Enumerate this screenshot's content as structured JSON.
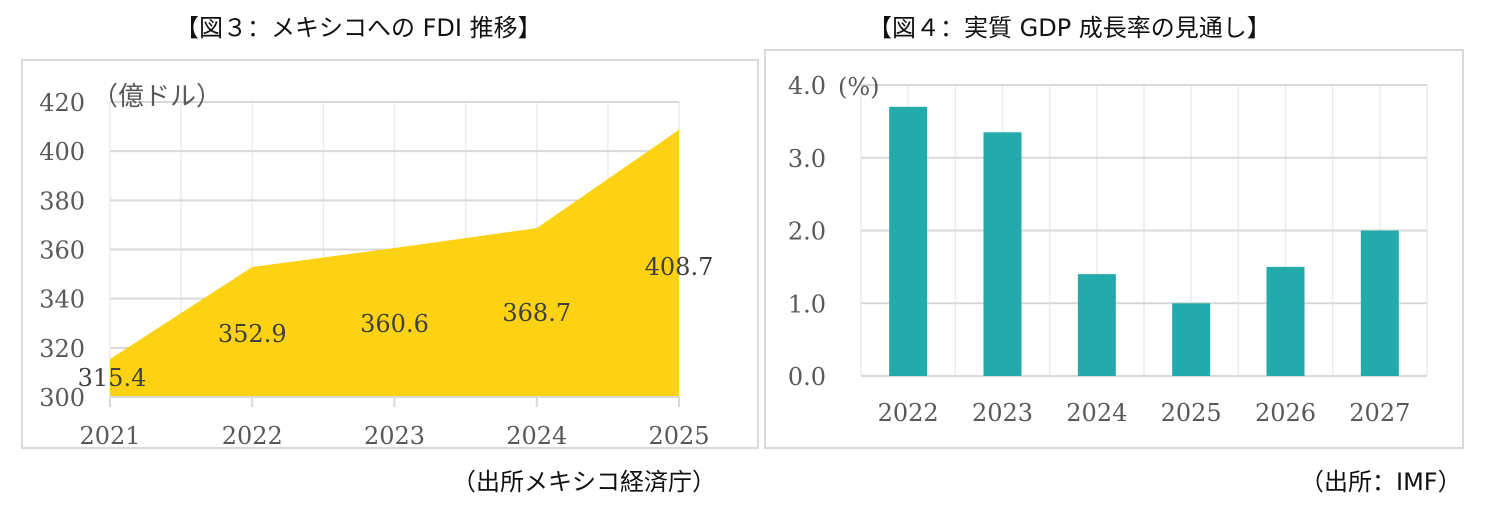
{
  "chart_data": [
    {
      "type": "area",
      "title": "【図３：メキシコへの FDI 推移】",
      "ylabel": "（億ドル）",
      "source": "（出所メキシコ経済庁）",
      "categories": [
        "2021",
        "2022",
        "2023",
        "2024",
        "2025"
      ],
      "values": [
        315.4,
        352.9,
        360.6,
        368.7,
        408.7
      ],
      "data_labels": [
        "315.4",
        "352.9",
        "360.6",
        "368.7",
        "408.7"
      ],
      "ylim": [
        300,
        420
      ],
      "yticks": [
        "300",
        "320",
        "340",
        "360",
        "380",
        "400",
        "420"
      ],
      "grid": true,
      "color": "#FCD213"
    },
    {
      "type": "bar",
      "title": "【図４：実質 GDP 成長率の見通し】",
      "ylabel": "(%)",
      "source": "（出所：IMF）",
      "categories": [
        "2022",
        "2023",
        "2024",
        "2025",
        "2026",
        "2027"
      ],
      "values": [
        3.7,
        3.35,
        1.4,
        1.0,
        1.5,
        2.0
      ],
      "ylim": [
        0,
        4
      ],
      "yticks": [
        "0.0",
        "1.0",
        "2.0",
        "3.0",
        "4.0"
      ],
      "grid": true,
      "color": "#23AAAA"
    }
  ]
}
